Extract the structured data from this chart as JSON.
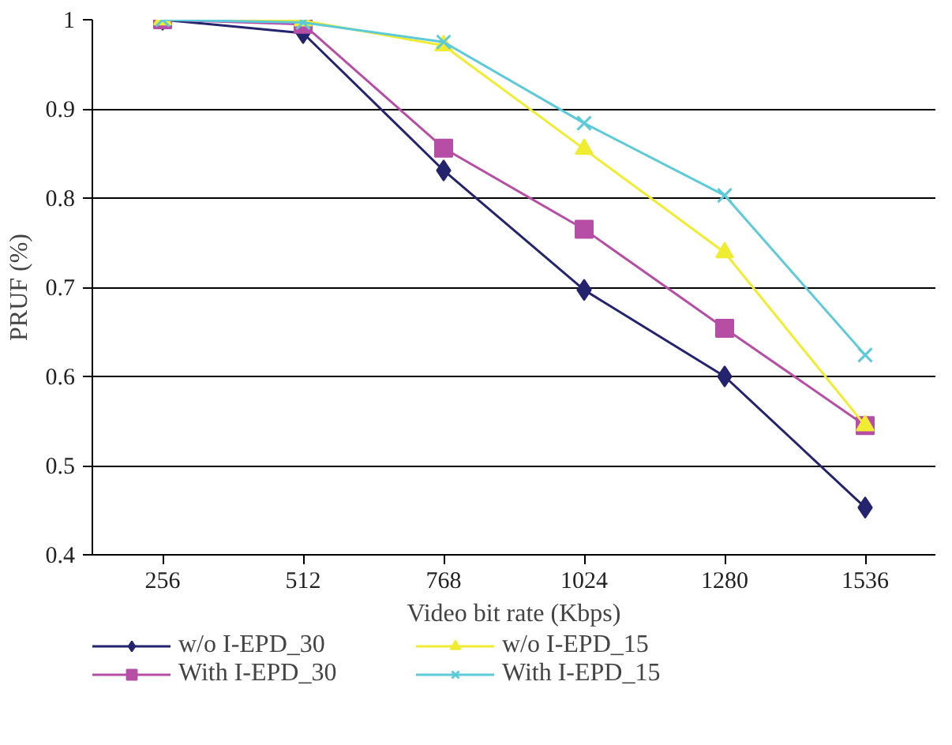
{
  "chart_data": {
    "type": "line",
    "xlabel": "Video bit rate (Kbps)",
    "ylabel": "PRUF (%)",
    "categories": [
      "256",
      "512",
      "768",
      "1024",
      "1280",
      "1536"
    ],
    "ylim": [
      0.4,
      1
    ],
    "yticks": [
      0.4,
      0.5,
      0.6,
      0.7,
      0.8,
      0.9,
      1
    ],
    "grid": "y",
    "legend": "bottom",
    "series": [
      {
        "name": "w/o I-EPD_30",
        "color": "#23236e",
        "marker": "diamond",
        "values": [
          1,
          0.985,
          0.831,
          0.697,
          0.6,
          0.453
        ]
      },
      {
        "name": "With I-EPD_30",
        "color": "#b64ea6",
        "marker": "square",
        "values": [
          1,
          0.995,
          0.856,
          0.765,
          0.654,
          0.545
        ]
      },
      {
        "name": "w/o I-EPD_15",
        "color": "#f0ec32",
        "marker": "triangle",
        "values": [
          1,
          0.999,
          0.971,
          0.855,
          0.739,
          0.545
        ]
      },
      {
        "name": "With I-EPD_15",
        "color": "#5ccad8",
        "marker": "x",
        "values": [
          1,
          0.997,
          0.975,
          0.884,
          0.803,
          0.624
        ]
      }
    ]
  }
}
